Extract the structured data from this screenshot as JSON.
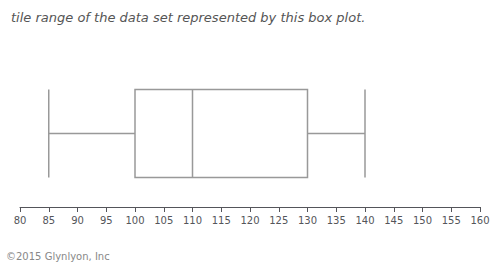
{
  "chart_data": {
    "type": "boxplot",
    "orientation": "horizontal",
    "title": "tile range of the data set represented by this box plot.",
    "annotations": [
      "©2015 Glynlyon, Inc"
    ],
    "min": 85,
    "q1": 100,
    "median": 110,
    "q3": 130,
    "max": 140,
    "color": "#999999",
    "xlim": [
      80,
      160
    ],
    "xticks": [
      80,
      85,
      90,
      95,
      100,
      105,
      110,
      115,
      120,
      125,
      130,
      135,
      140,
      145,
      150,
      155,
      160
    ],
    "grid": false,
    "tick_labels": "x"
  }
}
